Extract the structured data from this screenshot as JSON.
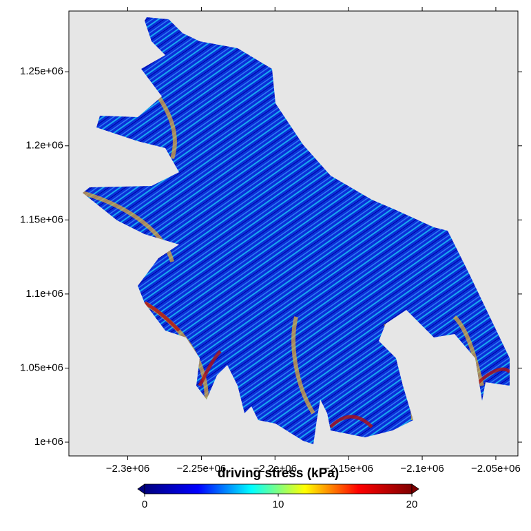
{
  "chart_data": {
    "type": "map",
    "xlim": [
      -2340000,
      -2035000
    ],
    "ylim": [
      990700,
      1291000
    ],
    "xticks": [
      {
        "value": -2300000,
        "label": "−2.3e+06"
      },
      {
        "value": -2250000,
        "label": "−2.25e+06"
      },
      {
        "value": -2200000,
        "label": "−2.2e+06"
      },
      {
        "value": -2150000,
        "label": "−2.15e+06"
      },
      {
        "value": -2100000,
        "label": "−2.1e+06"
      },
      {
        "value": -2050000,
        "label": "−2.05e+06"
      }
    ],
    "yticks": [
      {
        "value": 1000000,
        "label": "1e+06"
      },
      {
        "value": 1050000,
        "label": "1.05e+06"
      },
      {
        "value": 1100000,
        "label": "1.1e+06"
      },
      {
        "value": 1150000,
        "label": "1.15e+06"
      },
      {
        "value": 1200000,
        "label": "1.2e+06"
      },
      {
        "value": 1250000,
        "label": "1.25e+06"
      }
    ],
    "colorbar": {
      "label": "driving stress (kPa)",
      "lim": [
        0,
        20
      ],
      "ticks": [
        0,
        10,
        20
      ],
      "colors": [
        "#00007f",
        "#0000ff",
        "#00ffff",
        "#ffff00",
        "#ff0000",
        "#7f0000"
      ]
    }
  }
}
